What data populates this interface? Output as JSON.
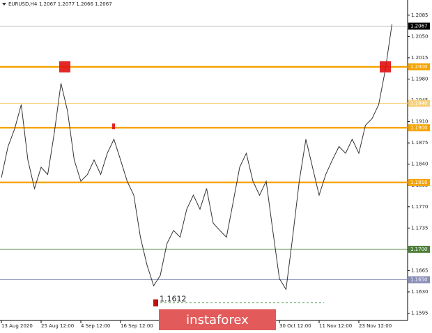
{
  "chart_data": {
    "type": "line",
    "title": "EURUSD,H4",
    "subtitle": "1.2067 1.2077 1.2066 1.2067",
    "watermark": "instaforex",
    "categories": [
      "13 Aug 2020",
      null,
      null,
      null,
      null,
      null,
      "25 Aug 12:00",
      null,
      null,
      null,
      null,
      null,
      "4 Sep 12:00",
      null,
      null,
      null,
      null,
      null,
      "16 Sep 12:00",
      null,
      null,
      null,
      null,
      null,
      null,
      null,
      null,
      null,
      null,
      null,
      null,
      null,
      null,
      null,
      null,
      null,
      null,
      null,
      null,
      null,
      null,
      null,
      "30 Oct 12:00",
      null,
      null,
      null,
      null,
      null,
      "11 Nov 12:00",
      null,
      null,
      null,
      null,
      null,
      "23 Nov 12:00",
      null,
      null,
      null,
      null,
      null
    ],
    "series": [
      {
        "color": "#333333",
        "values": [
          1.1818,
          1.1869,
          1.1898,
          1.1938,
          1.1847,
          1.18,
          1.1835,
          1.1823,
          1.1892,
          1.1973,
          1.1927,
          1.1847,
          1.1812,
          1.1823,
          1.1847,
          1.1823,
          1.1858,
          1.1881,
          1.1847,
          1.1812,
          1.1789,
          1.172,
          1.1674,
          1.164,
          1.1657,
          1.1709,
          1.1731,
          1.172,
          1.1766,
          1.1789,
          1.1766,
          1.18,
          1.1743,
          1.1731,
          1.172,
          1.1777,
          1.1835,
          1.1858,
          1.1812,
          1.1789,
          1.1812,
          1.1731,
          1.1652,
          1.1634,
          1.172,
          1.1812,
          1.1881,
          1.1835,
          1.1789,
          1.1823,
          1.1847,
          1.1869,
          1.1858,
          1.1881,
          1.1858,
          1.1904,
          1.1915,
          1.1938,
          1.1995,
          1.207
        ]
      }
    ],
    "ylim": [
      1.1583,
      1.211
    ],
    "yticks": [
      {
        "value": 1.2085,
        "label": "1.2085"
      },
      {
        "value": 1.205,
        "label": "1.2050"
      },
      {
        "value": 1.2015,
        "label": "1.2015"
      },
      {
        "value": 1.198,
        "label": "1.1980"
      },
      {
        "value": 1.1945,
        "label": "1.1945"
      },
      {
        "value": 1.191,
        "label": "1.1910"
      },
      {
        "value": 1.1875,
        "label": "1.1875"
      },
      {
        "value": 1.184,
        "label": "1.1840"
      },
      {
        "value": 1.1805,
        "label": "1.1805"
      },
      {
        "value": 1.177,
        "label": "1.1770"
      },
      {
        "value": 1.1735,
        "label": "1.1735"
      },
      {
        "value": 1.17,
        "label": "1.1700"
      },
      {
        "value": 1.1665,
        "label": "1.1665"
      },
      {
        "value": 1.163,
        "label": "1.1630"
      },
      {
        "value": 1.1595,
        "label": "1.1595"
      }
    ],
    "levels": [
      {
        "value": 1.2067,
        "label": "1.2067",
        "color": "#000000"
      },
      {
        "value": 1.2,
        "label": "1.2000",
        "color": "#f5a400"
      },
      {
        "value": 1.194,
        "label": "1.1940",
        "color": "#f7d07a"
      },
      {
        "value": 1.19,
        "label": "1.1900",
        "color": "#f5a400"
      },
      {
        "value": 1.181,
        "label": "1.1810",
        "color": "#f5a400"
      },
      {
        "value": 1.17,
        "label": "1.1700",
        "color": "#4e7f3a"
      },
      {
        "value": 1.165,
        "label": "1.1650",
        "color": "#8a8fb8"
      }
    ],
    "low_marker": {
      "value": 1.1612,
      "label": "1.1612"
    }
  }
}
